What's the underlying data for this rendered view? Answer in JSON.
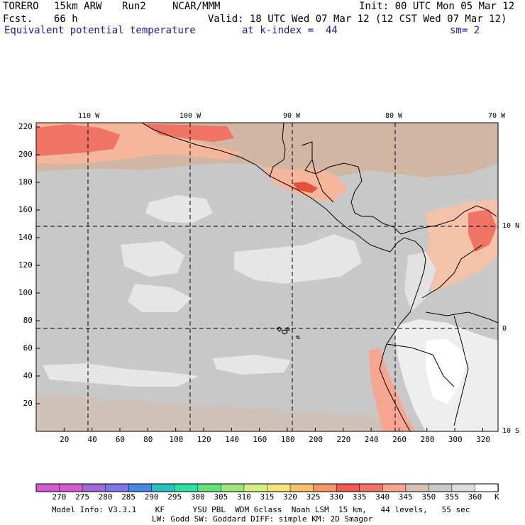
{
  "header": {
    "model": "TORERO",
    "resolution": "15km ARW",
    "run": "Run2",
    "center": "NCAR/MMM",
    "forecast_label": "Fcst.",
    "forecast_value": "66 h",
    "init": "Init: 00 UTC Mon 05 Mar 12",
    "valid": "Valid: 18 UTC Wed 07 Mar 12 (12 CST Wed 07 Mar 12)",
    "field": "Equivalent potential temperature",
    "level": "at k-index =  44",
    "smoothing": "sm= 2"
  },
  "map": {
    "lon_labels": [
      "110 W",
      "100 W",
      "90 W",
      "80 W",
      "70 W"
    ],
    "lat_labels": [
      "10 N",
      "0",
      "10 S"
    ],
    "grid_x_labels": [
      "20",
      "40",
      "60",
      "80",
      "100",
      "120",
      "140",
      "160",
      "180",
      "200",
      "220",
      "240",
      "260",
      "280",
      "300",
      "320"
    ],
    "grid_y_labels": [
      "20",
      "40",
      "60",
      "80",
      "100",
      "120",
      "140",
      "160",
      "180",
      "200",
      "220"
    ],
    "colors": {
      "ocean_base": "#c8c8c8",
      "ocean_light": "#e6e6e6",
      "warm_tan": "#d2b6a4",
      "peach": "#f6b69c",
      "salmon": "#f0826c",
      "red": "#e4523c",
      "land_light": "#eeeeee"
    }
  },
  "colorbar": {
    "values": [
      "270",
      "275",
      "280",
      "285",
      "290",
      "295",
      "300",
      "305",
      "310",
      "315",
      "320",
      "325",
      "330",
      "335",
      "340",
      "345",
      "350",
      "355",
      "360"
    ],
    "unit": "K",
    "colors": [
      "#d45ad2",
      "#a06ad8",
      "#7a78e4",
      "#4a86e6",
      "#2ac0c0",
      "#2ee0a0",
      "#64e27a",
      "#9ae67a",
      "#d6ee86",
      "#f4e27a",
      "#f4c06e",
      "#f2966a",
      "#ee5a4c",
      "#f07466",
      "#f6a690",
      "#d8c0b0",
      "#c8c8c8",
      "#dcdcdc",
      "#ffffff"
    ]
  },
  "footer": {
    "line1": "Model Info: V3.3.1    KF      YSU PBL  WDM 6class  Noah LSM  15 km,   44 levels,   55 sec",
    "line2": "LW: Godd SW: Goddard DIFF: simple KM: 2D Smagor"
  }
}
